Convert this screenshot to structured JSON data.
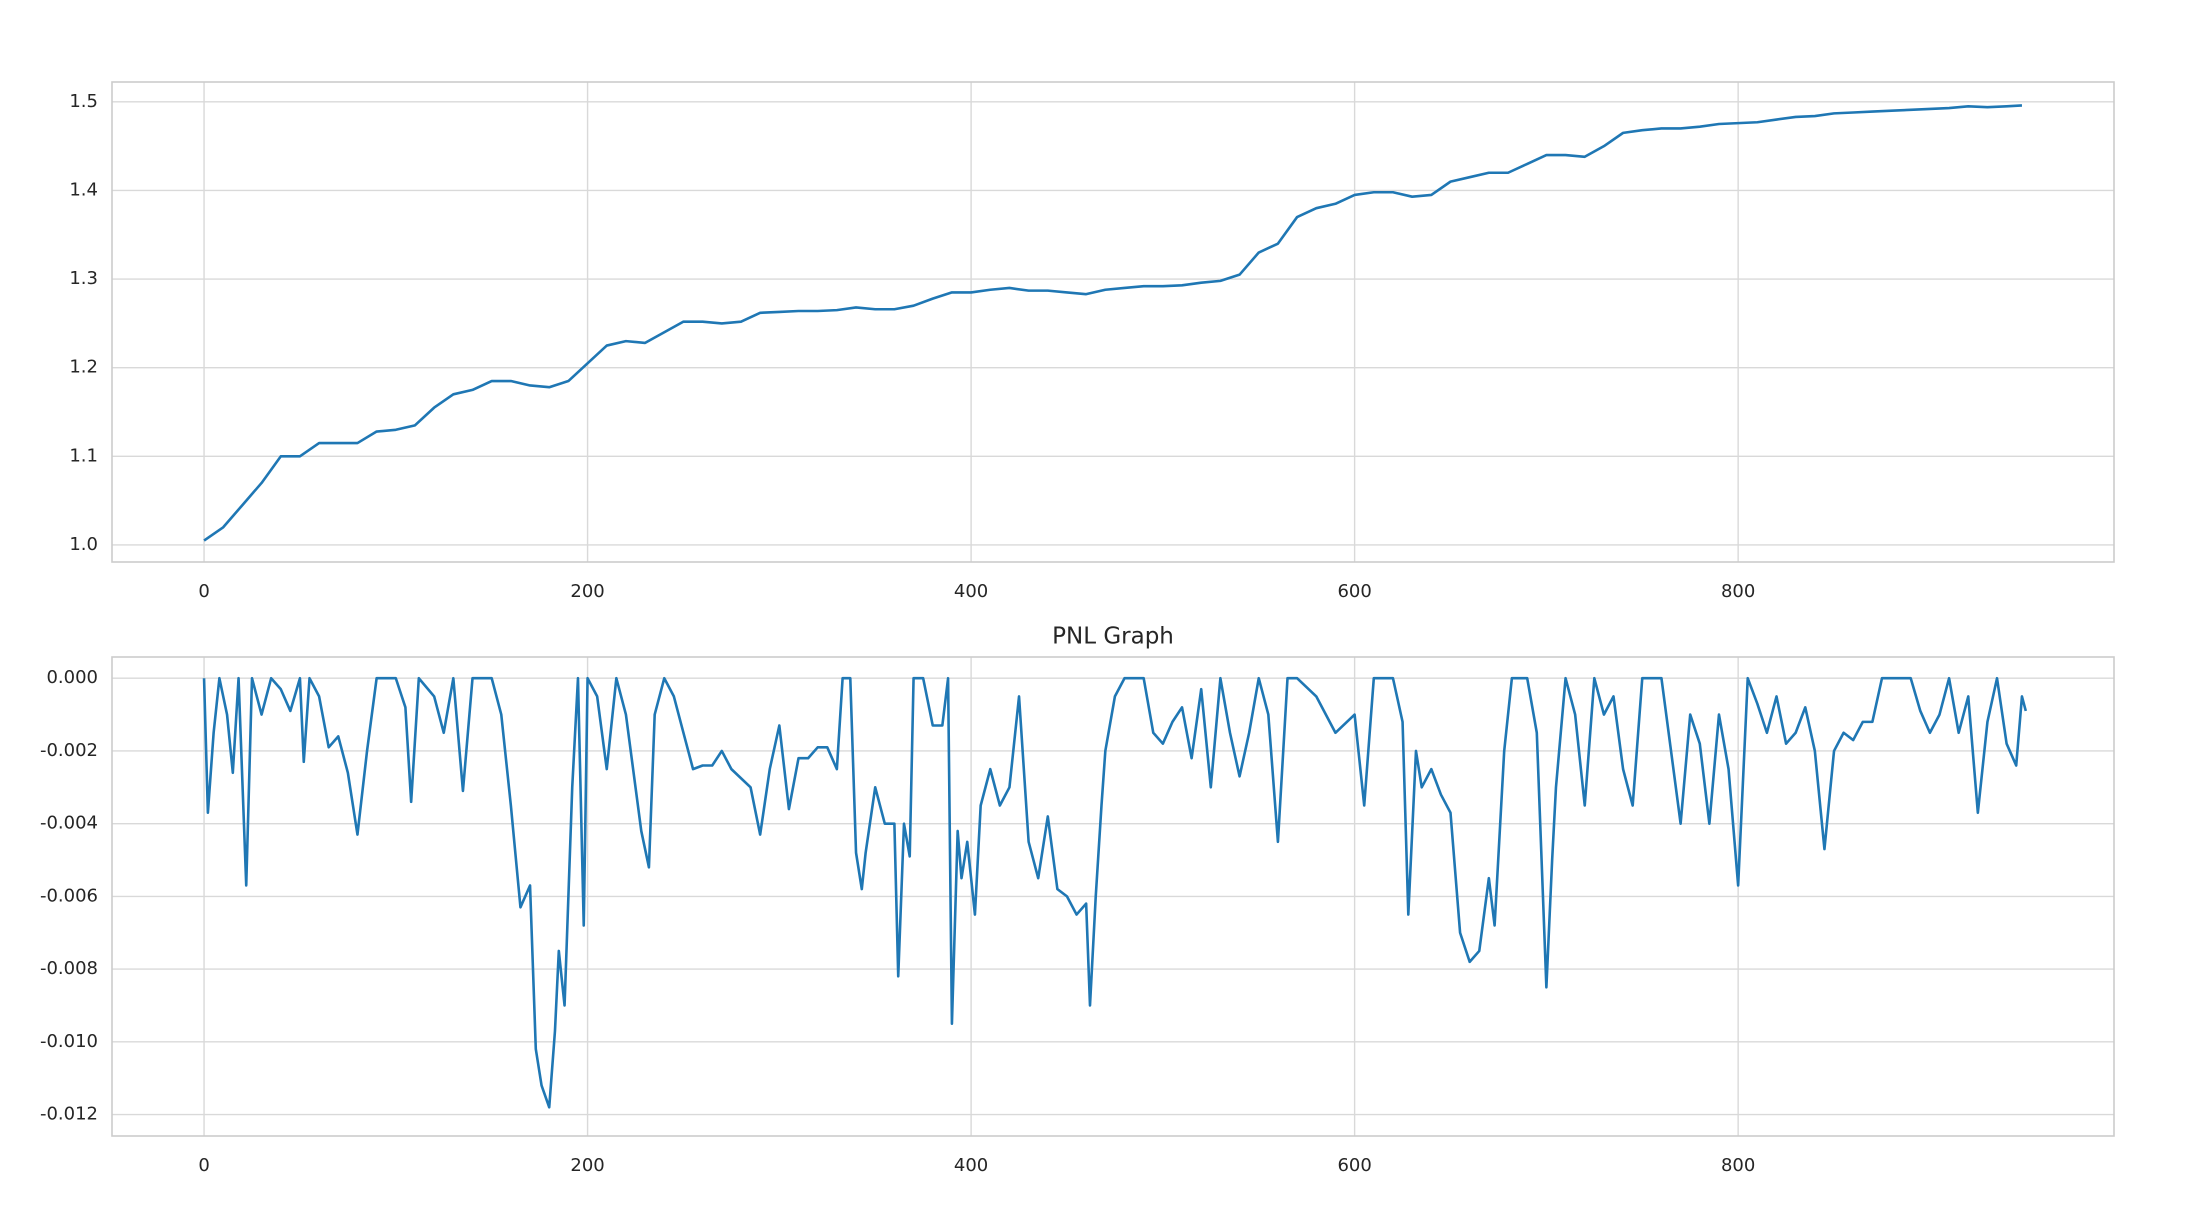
{
  "chart_data": [
    {
      "type": "line",
      "color": "#1f77b4",
      "grid": true,
      "x": [
        0,
        10,
        20,
        30,
        40,
        50,
        60,
        70,
        80,
        90,
        100,
        110,
        120,
        130,
        140,
        150,
        160,
        170,
        180,
        190,
        200,
        210,
        220,
        230,
        240,
        250,
        260,
        270,
        280,
        290,
        300,
        310,
        320,
        330,
        340,
        350,
        360,
        370,
        380,
        390,
        400,
        410,
        420,
        430,
        440,
        450,
        460,
        470,
        480,
        490,
        500,
        510,
        520,
        530,
        540,
        550,
        560,
        570,
        580,
        590,
        600,
        610,
        620,
        630,
        640,
        650,
        660,
        670,
        680,
        690,
        700,
        710,
        720,
        730,
        740,
        750,
        760,
        770,
        780,
        790,
        800,
        810,
        820,
        830,
        840,
        850,
        860,
        870,
        880,
        890,
        900,
        910,
        920,
        930,
        940,
        948
      ],
      "values": [
        1.005,
        1.02,
        1.045,
        1.07,
        1.1,
        1.1,
        1.115,
        1.115,
        1.115,
        1.128,
        1.13,
        1.135,
        1.155,
        1.17,
        1.175,
        1.185,
        1.185,
        1.18,
        1.178,
        1.185,
        1.205,
        1.225,
        1.23,
        1.228,
        1.24,
        1.252,
        1.252,
        1.25,
        1.252,
        1.262,
        1.263,
        1.264,
        1.264,
        1.265,
        1.268,
        1.266,
        1.266,
        1.27,
        1.278,
        1.285,
        1.285,
        1.288,
        1.29,
        1.287,
        1.287,
        1.285,
        1.283,
        1.288,
        1.29,
        1.292,
        1.292,
        1.293,
        1.296,
        1.298,
        1.305,
        1.33,
        1.34,
        1.37,
        1.38,
        1.385,
        1.395,
        1.398,
        1.398,
        1.393,
        1.395,
        1.41,
        1.415,
        1.42,
        1.42,
        1.43,
        1.44,
        1.44,
        1.438,
        1.45,
        1.465,
        1.468,
        1.47,
        1.47,
        1.472,
        1.475,
        1.476,
        1.477,
        1.48,
        1.483,
        1.484,
        1.487,
        1.488,
        1.489,
        1.49,
        1.491,
        1.492,
        1.493,
        1.495,
        1.494,
        1.495,
        1.496
      ],
      "xlim": [
        -48,
        996
      ],
      "xticks": [
        0,
        200,
        400,
        600,
        800
      ],
      "ylim": [
        0.9808,
        1.5224
      ],
      "yticks": [
        {
          "value": 1.0,
          "label": "1.0"
        },
        1.1,
        1.2,
        1.3,
        1.4,
        1.5
      ]
    },
    {
      "type": "line",
      "title": "PNL Graph",
      "color": "#1f77b4",
      "grid": true,
      "x": [
        0,
        2,
        5,
        8,
        12,
        15,
        18,
        22,
        25,
        30,
        35,
        40,
        45,
        50,
        52,
        55,
        60,
        65,
        70,
        75,
        80,
        85,
        90,
        100,
        105,
        108,
        112,
        120,
        125,
        130,
        135,
        140,
        150,
        155,
        160,
        165,
        170,
        173,
        176,
        180,
        183,
        185,
        188,
        192,
        195,
        198,
        200,
        205,
        210,
        215,
        220,
        225,
        228,
        232,
        235,
        240,
        245,
        250,
        255,
        260,
        265,
        270,
        275,
        285,
        290,
        295,
        300,
        305,
        310,
        315,
        320,
        325,
        330,
        333,
        337,
        340,
        343,
        345,
        350,
        355,
        360,
        362,
        365,
        368,
        370,
        375,
        380,
        385,
        388,
        390,
        393,
        395,
        398,
        402,
        405,
        410,
        415,
        420,
        425,
        430,
        435,
        440,
        445,
        450,
        455,
        460,
        462,
        465,
        468,
        470,
        475,
        480,
        490,
        495,
        500,
        505,
        510,
        515,
        520,
        525,
        530,
        535,
        540,
        545,
        550,
        555,
        560,
        565,
        570,
        580,
        590,
        600,
        605,
        610,
        620,
        625,
        628,
        632,
        635,
        640,
        645,
        650,
        655,
        660,
        665,
        670,
        673,
        678,
        682,
        690,
        695,
        700,
        703,
        705,
        710,
        715,
        720,
        725,
        730,
        735,
        740,
        745,
        750,
        760,
        765,
        770,
        775,
        780,
        785,
        790,
        795,
        800,
        805,
        810,
        815,
        820,
        825,
        830,
        835,
        840,
        845,
        850,
        855,
        860,
        865,
        870,
        875,
        880,
        890,
        895,
        900,
        905,
        910,
        915,
        920,
        925,
        930,
        935,
        940,
        945,
        948,
        950
      ],
      "values": [
        0,
        -0.0037,
        -0.0015,
        0,
        -0.001,
        -0.0026,
        0,
        -0.0057,
        0,
        -0.001,
        0,
        -0.0003,
        -0.0009,
        0,
        -0.0023,
        0,
        -0.0005,
        -0.0019,
        -0.0016,
        -0.0026,
        -0.0043,
        -0.002,
        0,
        0,
        -0.0008,
        -0.0034,
        0,
        -0.0005,
        -0.0015,
        0,
        -0.0031,
        0,
        0,
        -0.001,
        -0.0035,
        -0.0063,
        -0.0057,
        -0.0102,
        -0.0112,
        -0.0118,
        -0.0097,
        -0.0075,
        -0.009,
        -0.003,
        0,
        -0.0068,
        0,
        -0.0005,
        -0.0025,
        0,
        -0.001,
        -0.003,
        -0.0042,
        -0.0052,
        -0.001,
        0,
        -0.0005,
        -0.0015,
        -0.0025,
        -0.0024,
        -0.0024,
        -0.002,
        -0.0025,
        -0.003,
        -0.0043,
        -0.0025,
        -0.0013,
        -0.0036,
        -0.0022,
        -0.0022,
        -0.0019,
        -0.0019,
        -0.0025,
        0,
        0,
        -0.0048,
        -0.0058,
        -0.0048,
        -0.003,
        -0.004,
        -0.004,
        -0.0082,
        -0.004,
        -0.0049,
        0,
        0,
        -0.0013,
        -0.0013,
        0,
        -0.0095,
        -0.0042,
        -0.0055,
        -0.0045,
        -0.0065,
        -0.0035,
        -0.0025,
        -0.0035,
        -0.003,
        -0.0005,
        -0.0045,
        -0.0055,
        -0.0038,
        -0.0058,
        -0.006,
        -0.0065,
        -0.0062,
        -0.009,
        -0.006,
        -0.0035,
        -0.002,
        -0.0005,
        0,
        0,
        -0.0015,
        -0.0018,
        -0.0012,
        -0.0008,
        -0.0022,
        -0.0003,
        -0.003,
        0,
        -0.0015,
        -0.0027,
        -0.0015,
        0,
        -0.001,
        -0.0045,
        0,
        0,
        -0.0005,
        -0.0015,
        -0.001,
        -0.0035,
        0,
        0,
        -0.0012,
        -0.0065,
        -0.002,
        -0.003,
        -0.0025,
        -0.0032,
        -0.0037,
        -0.007,
        -0.0078,
        -0.0075,
        -0.0055,
        -0.0068,
        -0.002,
        0,
        0,
        -0.0015,
        -0.0085,
        -0.005,
        -0.003,
        0,
        -0.001,
        -0.0035,
        0,
        -0.001,
        -0.0005,
        -0.0025,
        -0.0035,
        0,
        0,
        -0.002,
        -0.004,
        -0.001,
        -0.0018,
        -0.004,
        -0.001,
        -0.0025,
        -0.0057,
        0,
        -0.0007,
        -0.0015,
        -0.0005,
        -0.0018,
        -0.0015,
        -0.0008,
        -0.002,
        -0.0047,
        -0.002,
        -0.0015,
        -0.0017,
        -0.0012,
        -0.0012,
        0,
        0,
        0,
        -0.0009,
        -0.0015,
        -0.001,
        0,
        -0.0015,
        -0.0005,
        -0.0037,
        -0.0012,
        0,
        -0.0018,
        -0.0024,
        -0.0005,
        -0.0009
      ],
      "xlim": [
        -48,
        996
      ],
      "xticks": [
        0,
        200,
        400,
        600,
        800
      ],
      "ylim": [
        -0.01259,
        0.000584
      ],
      "yticks": [
        {
          "value": 0,
          "label": "0.000"
        },
        {
          "value": -0.002,
          "label": "-0.002"
        },
        {
          "value": -0.004,
          "label": "-0.004"
        },
        {
          "value": -0.006,
          "label": "-0.006"
        },
        {
          "value": -0.008,
          "label": "-0.008"
        },
        {
          "value": -0.01,
          "label": "-0.010"
        },
        {
          "value": -0.012,
          "label": "-0.012"
        }
      ]
    }
  ]
}
